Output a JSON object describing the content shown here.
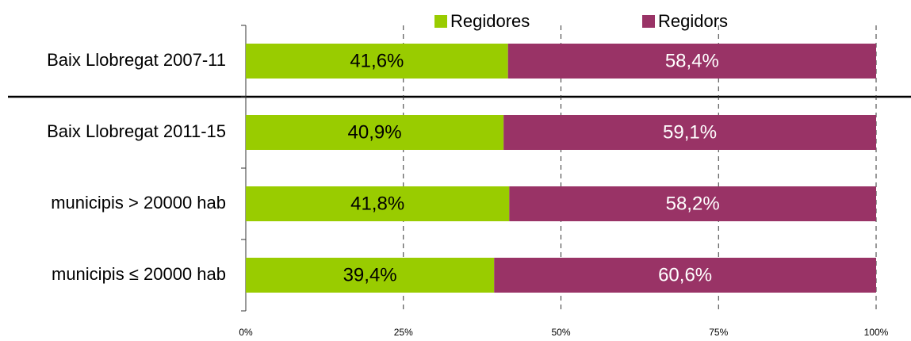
{
  "chart_data": {
    "type": "stacked_bar_horizontal",
    "categories": [
      "Baix Llobregat 2007-11",
      "Baix Llobregat 2011-15",
      "municipis > 20000 hab",
      "municipis ≤ 20000 hab"
    ],
    "series": [
      {
        "name": "Regidores",
        "color": "#99cc00",
        "values": [
          41.6,
          40.9,
          41.8,
          39.4
        ],
        "value_labels": [
          "41,6%",
          "40,9%",
          "41,8%",
          "39,4%"
        ]
      },
      {
        "name": "Regidors",
        "color": "#993366",
        "values": [
          58.4,
          59.1,
          58.2,
          60.6
        ],
        "value_labels": [
          "58,4%",
          "59,1%",
          "58,2%",
          "60,6%"
        ]
      }
    ],
    "xlim": [
      0,
      100
    ],
    "xticks": [
      {
        "value": 0,
        "label": "0%"
      },
      {
        "value": 25,
        "label": "25%"
      },
      {
        "value": 50,
        "label": "50%"
      },
      {
        "value": 75,
        "label": "75%"
      },
      {
        "value": 100,
        "label": "100%"
      }
    ],
    "grid": true,
    "legend": "top"
  }
}
